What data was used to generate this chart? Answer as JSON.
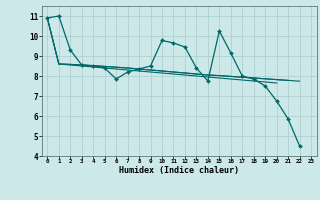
{
  "xlabel": "Humidex (Indice chaleur)",
  "bg_color": "#cce8e8",
  "grid_color": "#aacccc",
  "line_color": "#006868",
  "xlim": [
    -0.5,
    23.5
  ],
  "ylim": [
    4,
    11.5
  ],
  "yticks": [
    4,
    5,
    6,
    7,
    8,
    9,
    10,
    11
  ],
  "xticks": [
    0,
    1,
    2,
    3,
    4,
    5,
    6,
    7,
    8,
    9,
    10,
    11,
    12,
    13,
    14,
    15,
    16,
    17,
    18,
    19,
    20,
    21,
    22,
    23
  ],
  "xtick_labels": [
    "0",
    "1",
    "2",
    "3",
    "4",
    "5",
    "6",
    "7",
    "8",
    "9",
    "10",
    "11",
    "12",
    "13",
    "14",
    "15",
    "16",
    "17",
    "18",
    "19",
    "20",
    "21",
    "22",
    "23"
  ],
  "series": [
    {
      "x": [
        0,
        1,
        2,
        3,
        4,
        5,
        6,
        7,
        8,
        9,
        10,
        11,
        12,
        13,
        14,
        15,
        16,
        17,
        18,
        19,
        20,
        21,
        22
      ],
      "y": [
        10.9,
        11.0,
        9.3,
        8.55,
        8.5,
        8.4,
        7.85,
        8.2,
        8.35,
        8.5,
        9.78,
        9.65,
        9.45,
        8.4,
        7.75,
        10.25,
        9.15,
        8.0,
        7.85,
        7.5,
        6.75,
        5.85,
        4.5
      ],
      "marker": true,
      "lw": 0.9
    },
    {
      "x": [
        0,
        1,
        2,
        3,
        4,
        5,
        6,
        7,
        8,
        9,
        10,
        11,
        12,
        13,
        14,
        15,
        16,
        17,
        18,
        19,
        20
      ],
      "y": [
        10.9,
        8.6,
        8.55,
        8.5,
        8.45,
        8.4,
        8.35,
        8.3,
        8.25,
        8.2,
        8.15,
        8.1,
        8.05,
        8.0,
        7.95,
        7.9,
        7.85,
        7.8,
        7.75,
        7.7,
        7.65
      ],
      "marker": false,
      "lw": 0.8
    },
    {
      "x": [
        0,
        1,
        2,
        3,
        4,
        5,
        6,
        7,
        8,
        9,
        10,
        11,
        12,
        13,
        14,
        15,
        16,
        17,
        18,
        19,
        20,
        21
      ],
      "y": [
        10.9,
        8.6,
        8.58,
        8.55,
        8.52,
        8.48,
        8.44,
        8.4,
        8.35,
        8.3,
        8.25,
        8.2,
        8.15,
        8.1,
        8.05,
        8.02,
        7.98,
        7.94,
        7.9,
        7.86,
        7.82,
        7.78
      ],
      "marker": false,
      "lw": 0.8
    },
    {
      "x": [
        0,
        1,
        2,
        3,
        4,
        5,
        6,
        7,
        8,
        9,
        10,
        11,
        12,
        13,
        14,
        15,
        16,
        17,
        18,
        19,
        20,
        21,
        22
      ],
      "y": [
        10.9,
        8.6,
        8.58,
        8.55,
        8.52,
        8.48,
        8.44,
        8.4,
        8.35,
        8.3,
        8.25,
        8.2,
        8.15,
        8.1,
        8.05,
        8.02,
        7.98,
        7.94,
        7.9,
        7.86,
        7.82,
        7.78,
        7.74
      ],
      "marker": false,
      "lw": 0.8
    }
  ]
}
